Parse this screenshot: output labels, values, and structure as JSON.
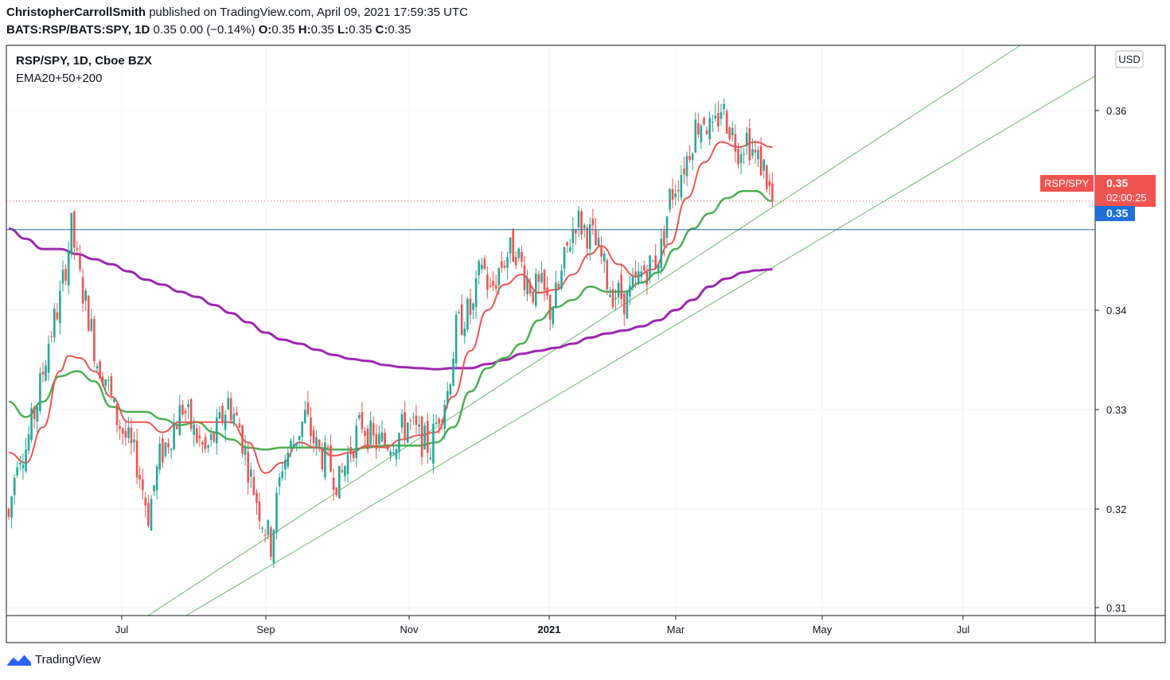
{
  "header": {
    "author": "ChristopherCarrollSmith",
    "published_text": "published on TradingView.com, April 09, 2021 17:59:35 UTC",
    "symbol": "BATS:RSP/BATS:SPY, 1D",
    "last": "0.35",
    "change": "0.00 (−0.14%)",
    "o_label": "O:",
    "o": "0.35",
    "h_label": "H:",
    "h": "0.35",
    "l_label": "L:",
    "l": "0.35",
    "c_label": "C:",
    "c": "0.35"
  },
  "legend": {
    "title": "RSP/SPY, 1D, Cboe BZX",
    "indicator": "EMA20+50+200"
  },
  "currency": "USD",
  "price_labels": {
    "current_name": "RSP/SPY",
    "current_value": "0.35",
    "countdown": "02:00:25",
    "hline_value": "0.35"
  },
  "footer": {
    "brand": "TradingView"
  },
  "chart_data": {
    "type": "candlestick",
    "y_ticks": [
      "0.36",
      "0.34",
      "0.33",
      "0.32",
      "0.31"
    ],
    "x_ticks": [
      "Jul",
      "Sep",
      "Nov",
      "2021",
      "Mar",
      "May",
      "Jul"
    ],
    "ylim": [
      0.3095,
      0.3655
    ],
    "colors": {
      "up": "#26a69a",
      "down": "#ef5350",
      "ema20": "#ef5350",
      "ema50": "#4caf50",
      "ema200": "#9c27b0",
      "trend": "#66bb6a",
      "hline": "#2a6f97",
      "price_badge": "#ef5350",
      "hline_badge": "#1e6fd9"
    },
    "horizontal_line": 0.3474,
    "current_price": 0.3502,
    "waypoints": [
      [
        0,
        0.319
      ],
      [
        3,
        0.3255
      ],
      [
        6,
        0.326
      ],
      [
        10,
        0.3305
      ],
      [
        14,
        0.3365
      ],
      [
        18,
        0.3405
      ],
      [
        22,
        0.3475
      ],
      [
        25,
        0.3425
      ],
      [
        28,
        0.339
      ],
      [
        31,
        0.3345
      ],
      [
        34,
        0.333
      ],
      [
        37,
        0.3295
      ],
      [
        41,
        0.327
      ],
      [
        45,
        0.3245
      ],
      [
        49,
        0.3195
      ],
      [
        53,
        0.325
      ],
      [
        57,
        0.3275
      ],
      [
        61,
        0.33
      ],
      [
        65,
        0.3275
      ],
      [
        69,
        0.3255
      ],
      [
        73,
        0.3275
      ],
      [
        77,
        0.3305
      ],
      [
        81,
        0.328
      ],
      [
        85,
        0.323
      ],
      [
        89,
        0.319
      ],
      [
        92,
        0.3165
      ],
      [
        96,
        0.3245
      ],
      [
        100,
        0.3265
      ],
      [
        104,
        0.329
      ],
      [
        108,
        0.326
      ],
      [
        112,
        0.3245
      ],
      [
        116,
        0.3225
      ],
      [
        120,
        0.326
      ],
      [
        124,
        0.3285
      ],
      [
        128,
        0.3265
      ],
      [
        132,
        0.3265
      ],
      [
        136,
        0.327
      ],
      [
        140,
        0.3285
      ],
      [
        144,
        0.327
      ],
      [
        148,
        0.326
      ],
      [
        151,
        0.3295
      ],
      [
        154,
        0.3315
      ],
      [
        157,
        0.3375
      ],
      [
        160,
        0.339
      ],
      [
        163,
        0.3395
      ],
      [
        166,
        0.3445
      ],
      [
        169,
        0.341
      ],
      [
        172,
        0.3435
      ],
      [
        175,
        0.345
      ],
      [
        178,
        0.3455
      ],
      [
        181,
        0.343
      ],
      [
        184,
        0.3415
      ],
      [
        187,
        0.3415
      ],
      [
        190,
        0.3395
      ],
      [
        193,
        0.3415
      ],
      [
        196,
        0.3455
      ],
      [
        199,
        0.3485
      ],
      [
        202,
        0.3475
      ],
      [
        205,
        0.3465
      ],
      [
        208,
        0.3445
      ],
      [
        211,
        0.3415
      ],
      [
        214,
        0.341
      ],
      [
        217,
        0.3405
      ],
      [
        220,
        0.342
      ],
      [
        223,
        0.3435
      ],
      [
        226,
        0.344
      ],
      [
        229,
        0.3455
      ],
      [
        232,
        0.3505
      ],
      [
        235,
        0.3525
      ],
      [
        238,
        0.3545
      ],
      [
        241,
        0.3575
      ],
      [
        244,
        0.3585
      ],
      [
        247,
        0.3565
      ],
      [
        250,
        0.3595
      ],
      [
        253,
        0.3575
      ],
      [
        256,
        0.3555
      ],
      [
        259,
        0.3565
      ],
      [
        262,
        0.3545
      ],
      [
        265,
        0.3535
      ],
      [
        268,
        0.35
      ]
    ],
    "ema_anchors": {
      "ema20": [
        [
          0,
          0.3255
        ],
        [
          6,
          0.3245
        ],
        [
          12,
          0.328
        ],
        [
          18,
          0.3335
        ],
        [
          21,
          0.335
        ],
        [
          25,
          0.3348
        ],
        [
          30,
          0.3335
        ],
        [
          36,
          0.331
        ],
        [
          42,
          0.3285
        ],
        [
          48,
          0.3285
        ],
        [
          54,
          0.3275
        ],
        [
          60,
          0.3285
        ],
        [
          66,
          0.3285
        ],
        [
          72,
          0.3285
        ],
        [
          78,
          0.3285
        ],
        [
          84,
          0.3265
        ],
        [
          90,
          0.3235
        ],
        [
          96,
          0.3245
        ],
        [
          102,
          0.3265
        ],
        [
          108,
          0.326
        ],
        [
          114,
          0.3252
        ],
        [
          120,
          0.3255
        ],
        [
          126,
          0.3262
        ],
        [
          132,
          0.326
        ],
        [
          138,
          0.3268
        ],
        [
          144,
          0.3272
        ],
        [
          150,
          0.3275
        ],
        [
          156,
          0.331
        ],
        [
          162,
          0.3355
        ],
        [
          168,
          0.3395
        ],
        [
          174,
          0.342
        ],
        [
          180,
          0.343
        ],
        [
          186,
          0.3412
        ],
        [
          192,
          0.3415
        ],
        [
          198,
          0.343
        ],
        [
          204,
          0.345
        ],
        [
          208,
          0.3458
        ],
        [
          214,
          0.344
        ],
        [
          220,
          0.3428
        ],
        [
          226,
          0.3435
        ],
        [
          232,
          0.346
        ],
        [
          238,
          0.3505
        ],
        [
          244,
          0.354
        ],
        [
          250,
          0.356
        ],
        [
          256,
          0.3555
        ],
        [
          262,
          0.356
        ],
        [
          268,
          0.3555
        ]
      ],
      "ema50": [
        [
          0,
          0.3305
        ],
        [
          6,
          0.329
        ],
        [
          12,
          0.3305
        ],
        [
          18,
          0.333
        ],
        [
          24,
          0.3335
        ],
        [
          30,
          0.3325
        ],
        [
          36,
          0.33
        ],
        [
          42,
          0.3295
        ],
        [
          48,
          0.3295
        ],
        [
          54,
          0.3288
        ],
        [
          60,
          0.3282
        ],
        [
          66,
          0.3285
        ],
        [
          72,
          0.3275
        ],
        [
          78,
          0.3268
        ],
        [
          84,
          0.326
        ],
        [
          90,
          0.3258
        ],
        [
          96,
          0.326
        ],
        [
          102,
          0.326
        ],
        [
          108,
          0.326
        ],
        [
          114,
          0.3258
        ],
        [
          120,
          0.3258
        ],
        [
          126,
          0.326
        ],
        [
          132,
          0.3262
        ],
        [
          138,
          0.3262
        ],
        [
          144,
          0.3262
        ],
        [
          150,
          0.3265
        ],
        [
          156,
          0.328
        ],
        [
          162,
          0.3315
        ],
        [
          168,
          0.3338
        ],
        [
          174,
          0.3348
        ],
        [
          180,
          0.3362
        ],
        [
          186,
          0.3385
        ],
        [
          192,
          0.3398
        ],
        [
          198,
          0.3405
        ],
        [
          204,
          0.3418
        ],
        [
          210,
          0.3413
        ],
        [
          216,
          0.3413
        ],
        [
          222,
          0.3422
        ],
        [
          228,
          0.3432
        ],
        [
          234,
          0.3455
        ],
        [
          240,
          0.3475
        ],
        [
          246,
          0.349
        ],
        [
          252,
          0.3505
        ],
        [
          258,
          0.3512
        ],
        [
          262,
          0.3512
        ],
        [
          268,
          0.3502
        ]
      ],
      "ema200": [
        [
          0,
          0.3475
        ],
        [
          6,
          0.3465
        ],
        [
          12,
          0.3455
        ],
        [
          18,
          0.3455
        ],
        [
          24,
          0.345
        ],
        [
          30,
          0.3445
        ],
        [
          36,
          0.344
        ],
        [
          42,
          0.3433
        ],
        [
          48,
          0.3425
        ],
        [
          54,
          0.342
        ],
        [
          60,
          0.3413
        ],
        [
          66,
          0.3408
        ],
        [
          72,
          0.34
        ],
        [
          78,
          0.3392
        ],
        [
          84,
          0.3383
        ],
        [
          90,
          0.3373
        ],
        [
          96,
          0.3366
        ],
        [
          102,
          0.3362
        ],
        [
          108,
          0.3356
        ],
        [
          114,
          0.3351
        ],
        [
          120,
          0.3347
        ],
        [
          126,
          0.3345
        ],
        [
          132,
          0.3341
        ],
        [
          138,
          0.3339
        ],
        [
          144,
          0.3338
        ],
        [
          150,
          0.3337
        ],
        [
          156,
          0.3338
        ],
        [
          162,
          0.3338
        ],
        [
          168,
          0.3342
        ],
        [
          174,
          0.3346
        ],
        [
          180,
          0.3352
        ],
        [
          186,
          0.3355
        ],
        [
          192,
          0.3358
        ],
        [
          198,
          0.3362
        ],
        [
          204,
          0.3368
        ],
        [
          210,
          0.3372
        ],
        [
          216,
          0.3375
        ],
        [
          222,
          0.3379
        ],
        [
          228,
          0.3385
        ],
        [
          234,
          0.3395
        ],
        [
          240,
          0.3405
        ],
        [
          246,
          0.3418
        ],
        [
          252,
          0.3426
        ],
        [
          258,
          0.3432
        ],
        [
          262,
          0.3434
        ],
        [
          268,
          0.3435
        ]
      ]
    },
    "trend_lines": [
      {
        "from": [
          186,
          0.3095
        ],
        "to": [
          1282,
          0.3655
        ]
      },
      {
        "from": [
          234,
          0.3095
        ],
        "to": [
          1376,
          0.3625
        ]
      }
    ]
  }
}
